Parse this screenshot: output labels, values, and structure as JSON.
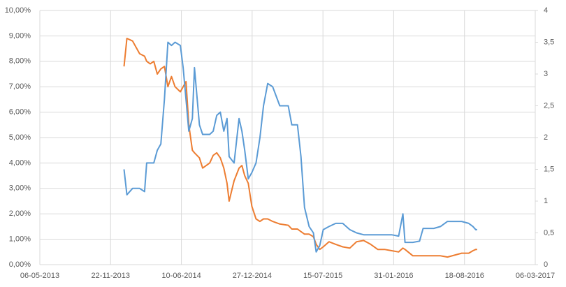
{
  "chart_data": {
    "type": "line",
    "x": [
      "2013-12-30",
      "2014-01-07",
      "2014-01-23",
      "2014-02-12",
      "2014-02-26",
      "2014-03-04",
      "2014-03-14",
      "2014-03-24",
      "2014-04-03",
      "2014-04-13",
      "2014-04-23",
      "2014-05-03",
      "2014-05-13",
      "2014-05-23",
      "2014-06-07",
      "2014-06-15",
      "2014-06-23",
      "2014-07-01",
      "2014-07-11",
      "2014-07-17",
      "2014-07-31",
      "2014-08-09",
      "2014-08-29",
      "2014-09-08",
      "2014-09-18",
      "2014-09-28",
      "2014-10-08",
      "2014-10-17",
      "2014-10-23",
      "2014-11-06",
      "2014-11-20",
      "2014-11-28",
      "2014-12-06",
      "2014-12-16",
      "2014-12-26",
      "2015-01-07",
      "2015-01-18",
      "2015-01-28",
      "2015-02-09",
      "2015-02-23",
      "2015-03-15",
      "2015-04-08",
      "2015-04-18",
      "2015-05-04",
      "2015-05-14",
      "2015-05-24",
      "2015-06-06",
      "2015-06-18",
      "2015-06-26",
      "2015-07-06",
      "2015-07-16",
      "2015-08-01",
      "2015-08-20",
      "2015-09-09",
      "2015-09-29",
      "2015-10-18",
      "2015-11-07",
      "2015-11-27",
      "2015-12-17",
      "2016-01-05",
      "2016-01-25",
      "2016-02-14",
      "2016-02-26",
      "2016-03-03",
      "2016-03-25",
      "2016-04-13",
      "2016-04-23",
      "2016-05-23",
      "2016-06-11",
      "2016-07-01",
      "2016-08-10",
      "2016-08-30",
      "2016-09-11",
      "2016-09-19",
      "2016-09-23"
    ],
    "series": [
      {
        "color": "#ed7d31",
        "axis": "y",
        "values": [
          7.8,
          8.9,
          8.8,
          8.3,
          8.2,
          8.0,
          7.9,
          8.0,
          7.5,
          7.7,
          7.8,
          7.0,
          7.4,
          7.0,
          6.8,
          7.0,
          7.2,
          5.5,
          4.5,
          4.4,
          4.2,
          3.8,
          4.0,
          4.3,
          4.4,
          4.2,
          3.8,
          3.2,
          2.5,
          3.3,
          3.8,
          3.9,
          3.5,
          3.2,
          2.3,
          1.8,
          1.7,
          1.8,
          1.8,
          1.7,
          1.6,
          1.55,
          1.4,
          1.4,
          1.3,
          1.2,
          1.2,
          1.1,
          0.8,
          0.6,
          0.7,
          0.9,
          0.8,
          0.7,
          0.65,
          0.9,
          0.95,
          0.8,
          0.6,
          0.6,
          0.55,
          0.5,
          0.65,
          0.6,
          0.35,
          0.35,
          0.35,
          0.35,
          0.35,
          0.3,
          0.45,
          0.45,
          0.55,
          0.6,
          0.6
        ]
      },
      {
        "color": "#5b9bd5",
        "axis": "y2",
        "values": [
          1.5,
          1.1,
          1.2,
          1.2,
          1.15,
          1.6,
          1.6,
          1.6,
          1.8,
          1.9,
          2.6,
          3.5,
          3.45,
          3.5,
          3.45,
          3.1,
          2.6,
          2.1,
          2.3,
          3.1,
          2.2,
          2.05,
          2.05,
          2.1,
          2.35,
          2.4,
          2.1,
          2.3,
          1.7,
          1.6,
          2.3,
          2.1,
          1.8,
          1.35,
          1.45,
          1.6,
          2.0,
          2.5,
          2.85,
          2.8,
          2.5,
          2.5,
          2.2,
          2.2,
          1.7,
          0.9,
          0.6,
          0.5,
          0.2,
          0.3,
          0.55,
          0.6,
          0.65,
          0.65,
          0.55,
          0.5,
          0.47,
          0.47,
          0.47,
          0.47,
          0.47,
          0.45,
          0.8,
          0.35,
          0.35,
          0.37,
          0.57,
          0.57,
          0.6,
          0.68,
          0.68,
          0.65,
          0.6,
          0.55,
          0.55
        ]
      }
    ],
    "xlim": [
      "2013-05-06",
      "2017-03-06"
    ],
    "xticks": [
      {
        "value": "2013-05-06",
        "label": "06-05-2013"
      },
      {
        "value": "2013-11-22",
        "label": "22-11-2013"
      },
      {
        "value": "2014-06-10",
        "label": "10-06-2014"
      },
      {
        "value": "2014-12-27",
        "label": "27-12-2014"
      },
      {
        "value": "2015-07-15",
        "label": "15-07-2015"
      },
      {
        "value": "2016-01-31",
        "label": "31-01-2016"
      },
      {
        "value": "2016-08-18",
        "label": "18-08-2016"
      },
      {
        "value": "2017-03-06",
        "label": "06-03-2017"
      }
    ],
    "ylim": [
      0,
      10
    ],
    "yticks": [
      {
        "value": 0,
        "label": "0,00%"
      },
      {
        "value": 1,
        "label": "1,00%"
      },
      {
        "value": 2,
        "label": "2,00%"
      },
      {
        "value": 3,
        "label": "3,00%"
      },
      {
        "value": 4,
        "label": "4,00%"
      },
      {
        "value": 5,
        "label": "5,00%"
      },
      {
        "value": 6,
        "label": "6,00%"
      },
      {
        "value": 7,
        "label": "7,00%"
      },
      {
        "value": 8,
        "label": "8,00%"
      },
      {
        "value": 9,
        "label": "9,00%"
      },
      {
        "value": 10,
        "label": "10,00%"
      }
    ],
    "y2lim": [
      0,
      4
    ],
    "y2ticks": [
      0,
      {
        "value": 0.5,
        "label": "0,5"
      },
      1,
      {
        "value": 1.5,
        "label": "1,5"
      },
      2,
      {
        "value": 2.5,
        "label": "2,5"
      },
      3,
      {
        "value": 3.5,
        "label": "3,5"
      },
      4
    ],
    "grid": true
  }
}
